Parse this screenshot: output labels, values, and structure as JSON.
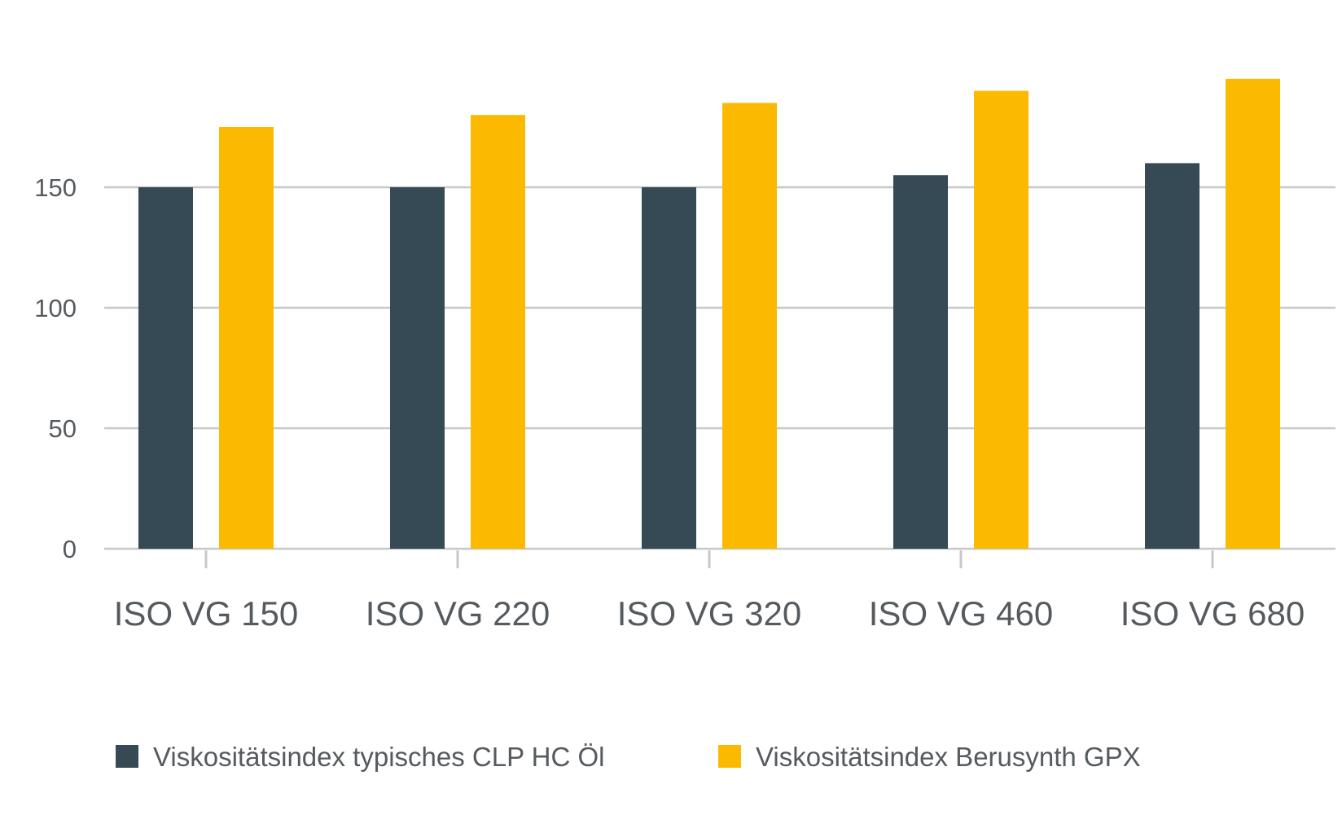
{
  "chart_data": {
    "type": "bar",
    "categories": [
      "ISO VG 150",
      "ISO VG 220",
      "ISO VG 320",
      "ISO VG 460",
      "ISO VG 680"
    ],
    "series": [
      {
        "name": "Viskositätsindex typisches CLP HC Öl",
        "values": [
          150,
          150,
          150,
          155,
          160
        ],
        "color": "#354a55"
      },
      {
        "name": "Viskositätsindex Berusynth GPX",
        "values": [
          175,
          180,
          185,
          190,
          195
        ],
        "color": "#fbba00"
      }
    ],
    "yticks": [
      0,
      50,
      100,
      150
    ],
    "ylim": [
      0,
      200
    ],
    "title": "",
    "xlabel": "",
    "ylabel": "",
    "grid": true,
    "legend_position": "bottom-left"
  }
}
